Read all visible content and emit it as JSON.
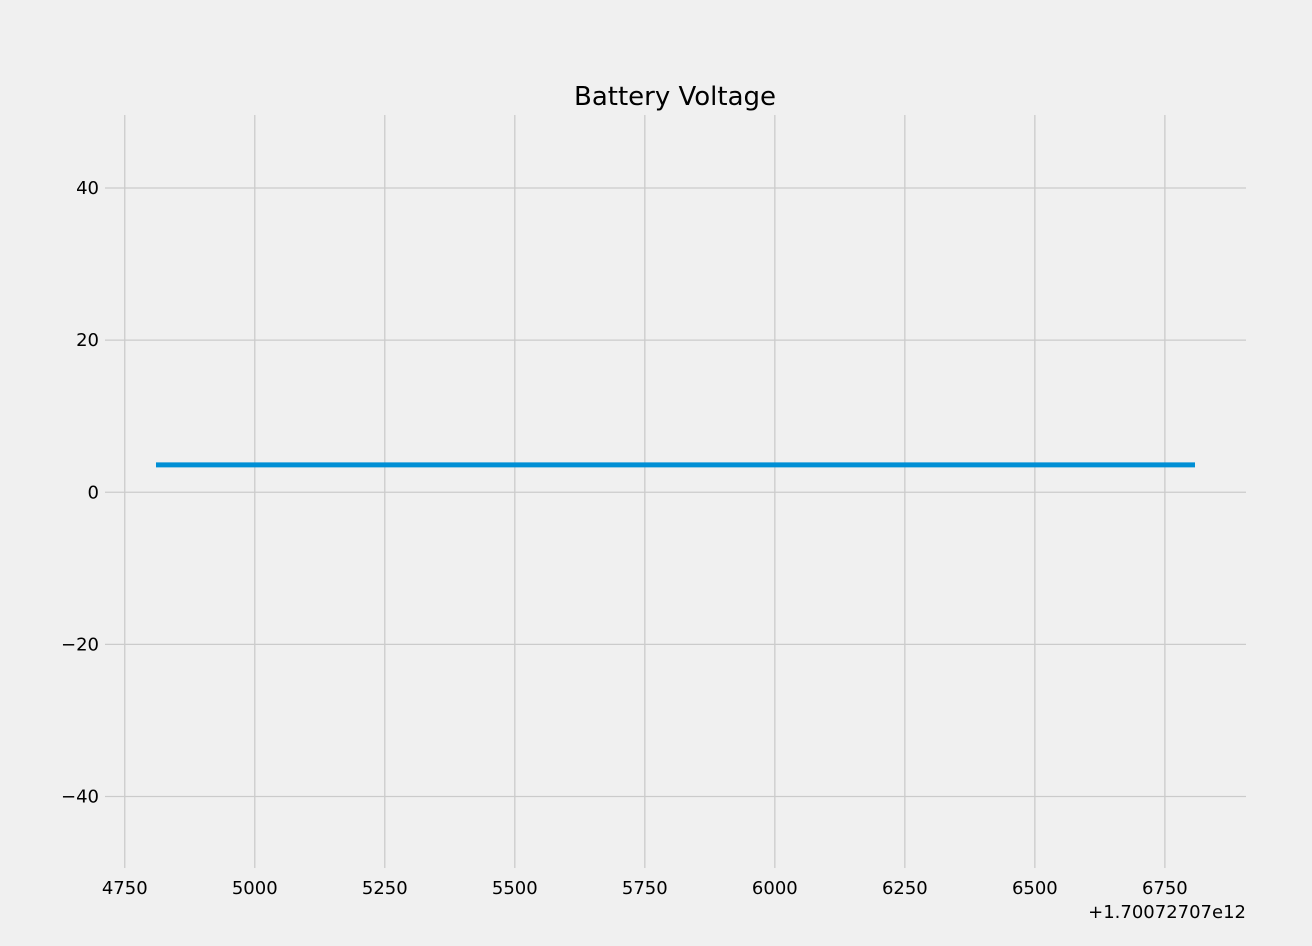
{
  "chart_data": {
    "type": "line",
    "title": "Battery Voltage",
    "xlabel": "",
    "ylabel": "",
    "x_offset_label": "+1.70072707e12",
    "x_ticks": [
      4750,
      5000,
      5250,
      5500,
      5750,
      6000,
      6250,
      6500,
      6750
    ],
    "x_tick_labels": [
      "4750",
      "5000",
      "5250",
      "5500",
      "5750",
      "6000",
      "6250",
      "6500",
      "6750"
    ],
    "y_ticks": [
      -40,
      -20,
      0,
      20,
      40
    ],
    "y_tick_labels": [
      "−40",
      "−20",
      "0",
      "20",
      "40"
    ],
    "xlim": [
      4712,
      6906
    ],
    "ylim": [
      -49.4,
      49.6
    ],
    "grid": true,
    "legend": "none",
    "series": [
      {
        "color": "#008fd5",
        "x": [
          4810,
          6808
        ],
        "y": [
          3.6,
          3.6
        ]
      }
    ]
  }
}
